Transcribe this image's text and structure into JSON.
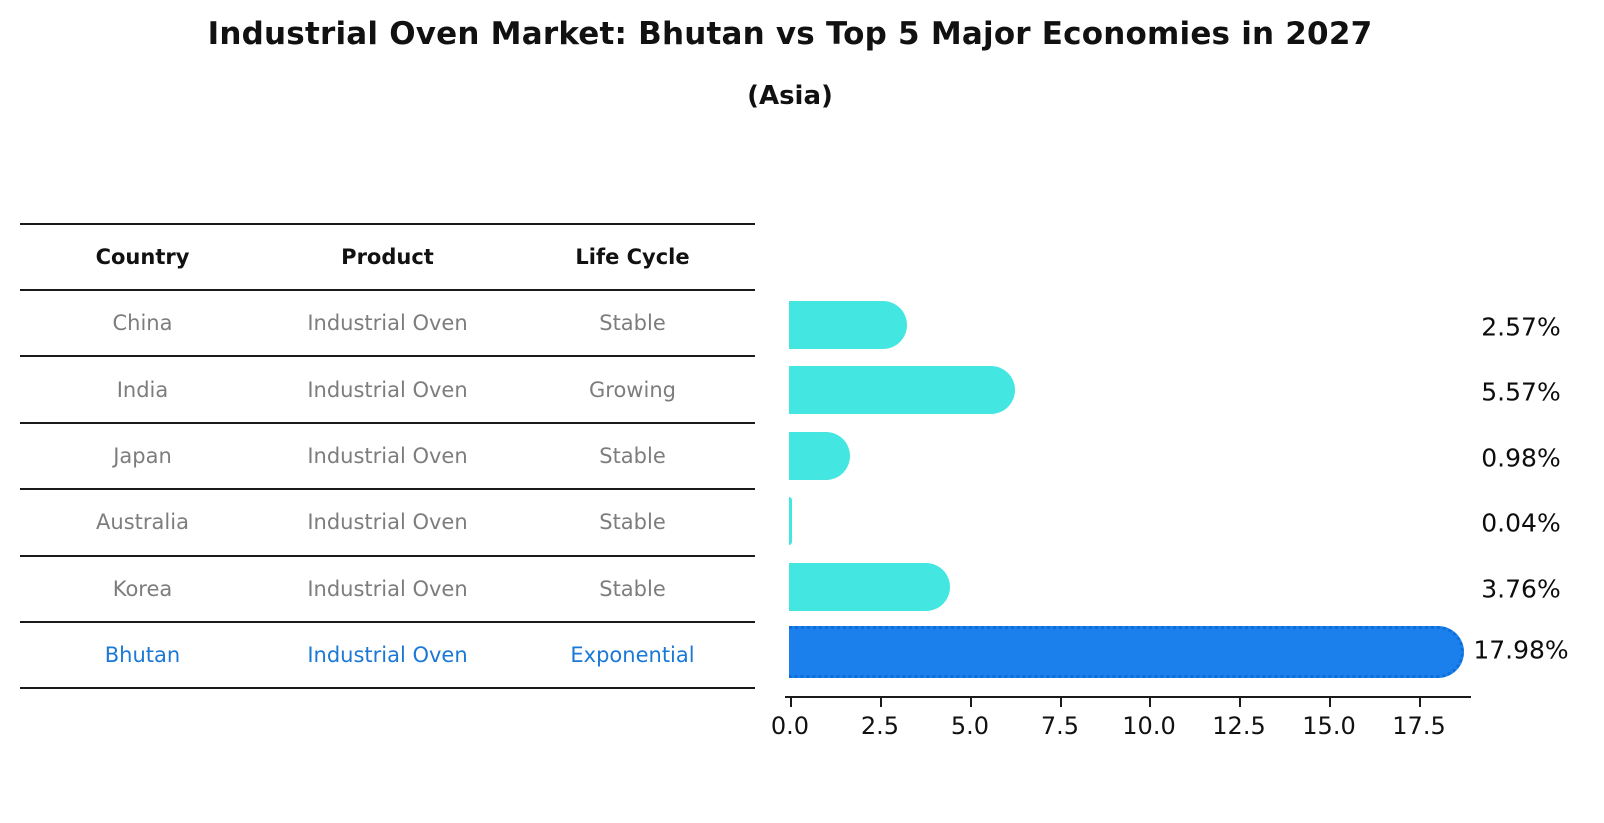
{
  "title": "Industrial Oven Market: Bhutan vs Top 5 Major Economies in 2027",
  "subtitle": "(Asia)",
  "table": {
    "headers": [
      "Country",
      "Product",
      "Life Cycle"
    ],
    "rows": [
      {
        "country": "China",
        "product": "Industrial Oven",
        "life_cycle": "Stable"
      },
      {
        "country": "India",
        "product": "Industrial Oven",
        "life_cycle": "Growing"
      },
      {
        "country": "Japan",
        "product": "Industrial Oven",
        "life_cycle": "Stable"
      },
      {
        "country": "Australia",
        "product": "Industrial Oven",
        "life_cycle": "Stable"
      },
      {
        "country": "Korea",
        "product": "Industrial Oven",
        "life_cycle": "Stable"
      },
      {
        "country": "Bhutan",
        "product": "Industrial Oven",
        "life_cycle": "Exponential"
      }
    ]
  },
  "chart_data": {
    "type": "bar",
    "orientation": "horizontal",
    "title": "Industrial Oven Market: Bhutan vs Top 5 Major Economies in 2027",
    "subtitle": "(Asia)",
    "categories": [
      "China",
      "India",
      "Japan",
      "Australia",
      "Korea",
      "Bhutan"
    ],
    "values": [
      2.57,
      5.57,
      0.98,
      0.04,
      3.76,
      17.98
    ],
    "value_labels": [
      "2.57%",
      "5.57%",
      "0.98%",
      "0.04%",
      "3.76%",
      "17.98%"
    ],
    "highlight_index": 5,
    "x_ticks": [
      "0.0",
      "2.5",
      "5.0",
      "7.5",
      "10.0",
      "12.5",
      "15.0",
      "17.5"
    ],
    "x_tick_values": [
      0,
      2.5,
      5,
      7.5,
      10,
      12.5,
      15,
      17.5
    ],
    "xlim": [
      0,
      19
    ],
    "grid": false,
    "legend": false,
    "colors": {
      "bar_default": "#43e6e0",
      "bar_highlight": "#1b80eb",
      "highlight_text": "#1a78d6",
      "table_text": "#7d7d7d",
      "header_text": "#111111"
    }
  }
}
